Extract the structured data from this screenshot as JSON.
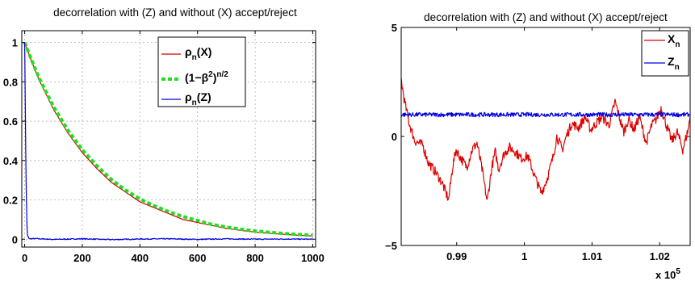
{
  "chart_data": [
    {
      "type": "line",
      "title": "decorrelation with (Z) and without (X) accept/reject",
      "xlabel": "",
      "ylabel": "",
      "xlim": [
        -10,
        1010
      ],
      "ylim": [
        -0.04,
        1.06
      ],
      "x_ticks": [
        0,
        200,
        400,
        600,
        800,
        1000
      ],
      "x_tick_labels": [
        "0",
        "200",
        "400",
        "600",
        "800",
        "1000"
      ],
      "y_ticks": [
        0,
        0.2,
        0.4,
        0.6,
        0.8,
        1
      ],
      "y_tick_labels": [
        "0",
        "0.2",
        "0.4",
        "0.6",
        "0.8",
        "1"
      ],
      "grid": true,
      "legend_position": "top-right",
      "legend_labels": [
        {
          "base": "ρ",
          "sub": "n",
          "tail": "(X)"
        },
        {
          "base": "(1−β",
          "sup": "2",
          "tail": ")",
          "sup2": "n/2"
        },
        {
          "base": "ρ",
          "sub": "n",
          "tail": "(Z)"
        }
      ],
      "series": [
        {
          "x": [
            0,
            20,
            50,
            100,
            150,
            200,
            250,
            300,
            350,
            400,
            450,
            500,
            550,
            600,
            650,
            700,
            750,
            800,
            850,
            900,
            950,
            1000
          ],
          "y": [
            1.0,
            0.92,
            0.81,
            0.66,
            0.54,
            0.44,
            0.36,
            0.29,
            0.24,
            0.19,
            0.16,
            0.13,
            0.1,
            0.085,
            0.07,
            0.055,
            0.045,
            0.036,
            0.03,
            0.025,
            0.02,
            0.016
          ],
          "color": "#d40000",
          "style": "solid"
        },
        {
          "x": [
            0,
            20,
            50,
            100,
            150,
            200,
            250,
            300,
            350,
            400,
            450,
            500,
            550,
            600,
            650,
            700,
            750,
            800,
            850,
            900,
            950,
            1000
          ],
          "y": [
            1.0,
            0.925,
            0.82,
            0.675,
            0.555,
            0.455,
            0.375,
            0.305,
            0.25,
            0.205,
            0.17,
            0.14,
            0.115,
            0.095,
            0.075,
            0.062,
            0.051,
            0.042,
            0.035,
            0.029,
            0.024,
            0.02
          ],
          "color": "#22dd22",
          "style": "dotted"
        },
        {
          "x": [
            0,
            2,
            4,
            6,
            8,
            10,
            14,
            20,
            40,
            100,
            200,
            300,
            400,
            500,
            600,
            700,
            800,
            900,
            1000
          ],
          "y": [
            1.0,
            0.7,
            0.4,
            0.2,
            0.07,
            0.02,
            0.005,
            0.002,
            0.003,
            -0.001,
            0.002,
            -0.002,
            0.001,
            0.002,
            -0.001,
            0.002,
            0.0,
            0.001,
            0.0
          ],
          "color": "#0000dd",
          "style": "solid",
          "noise": 0.0025
        }
      ]
    },
    {
      "type": "line",
      "title": "decorrelation with (Z) and without (X) accept/reject",
      "xlabel": "",
      "ylabel": "",
      "xlim": [
        98180,
        102450
      ],
      "ylim": [
        -5,
        5
      ],
      "x_ticks": [
        99000,
        100000,
        101000,
        102000
      ],
      "x_tick_labels": [
        "0.99",
        "1",
        "1.01",
        "1.02"
      ],
      "x_multiplier": "x 10",
      "x_multiplier_exp": "5",
      "y_ticks": [
        -5,
        0,
        5
      ],
      "y_tick_labels": [
        "−5",
        "0",
        "5"
      ],
      "grid": false,
      "legend_position": "top-right",
      "legend_labels": [
        {
          "base": "X",
          "sub": "n"
        },
        {
          "base": "Z",
          "sub": "n"
        }
      ],
      "series": [
        {
          "x": [
            98180,
            98230,
            98300,
            98380,
            98500,
            98580,
            98680,
            98780,
            98880,
            98940,
            98990,
            99060,
            99150,
            99230,
            99300,
            99380,
            99450,
            99520,
            99570,
            99620,
            99700,
            99780,
            99870,
            99950,
            100050,
            100150,
            100250,
            100330,
            100420,
            100480,
            100560,
            100620,
            100700,
            100800,
            100900,
            100980,
            101060,
            101150,
            101250,
            101340,
            101420,
            101470,
            101540,
            101620,
            101700,
            101800,
            101880,
            101950,
            102020,
            102100,
            102180,
            102260,
            102340,
            102420,
            102450
          ],
          "y": [
            2.6,
            1.6,
            0.6,
            -0.2,
            -0.4,
            -1.2,
            -1.6,
            -2.1,
            -2.9,
            -1.4,
            -0.6,
            -1.0,
            -1.4,
            -0.6,
            -0.3,
            -1.6,
            -3.0,
            -1.4,
            -0.7,
            -1.5,
            -0.8,
            -0.5,
            -0.7,
            -1.0,
            -0.9,
            -1.8,
            -2.6,
            -2.0,
            -1.0,
            0.0,
            -0.6,
            0.0,
            0.6,
            0.4,
            0.9,
            0.3,
            0.6,
            0.9,
            0.5,
            1.6,
            0.7,
            0.2,
            0.8,
            0.3,
            0.9,
            -0.3,
            0.5,
            0.8,
            1.3,
            0.5,
            -0.2,
            0.2,
            -0.6,
            0.3,
            0.9
          ],
          "color": "#e00000",
          "style": "solid",
          "noise": 0.22
        },
        {
          "x": [
            98180,
            102450
          ],
          "y": [
            1.0,
            1.0
          ],
          "color": "#0000e0",
          "style": "solid",
          "noise": 0.1
        }
      ]
    }
  ]
}
